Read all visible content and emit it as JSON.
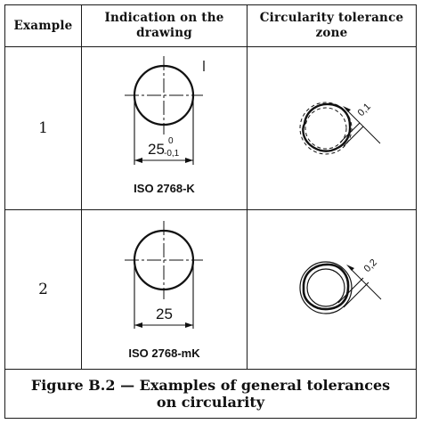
{
  "table": {
    "headers": {
      "example": "Example",
      "indication_line1": "Indication on the",
      "indication_line2": "drawing",
      "zone_line1": "Circularity tolerance",
      "zone_line2": "zone"
    },
    "rows": [
      {
        "example": "1",
        "dimension": "25",
        "upper_deviation": "0",
        "lower_deviation": "-0,1",
        "standard": "ISO 2768-K",
        "zone_value": "0,1"
      },
      {
        "example": "2",
        "dimension": "25",
        "standard": "ISO 2768-mK",
        "zone_value": "0,2"
      }
    ]
  },
  "caption": {
    "line1": "Figure B.2 — Examples of general tolerances",
    "line2": "on circularity"
  }
}
